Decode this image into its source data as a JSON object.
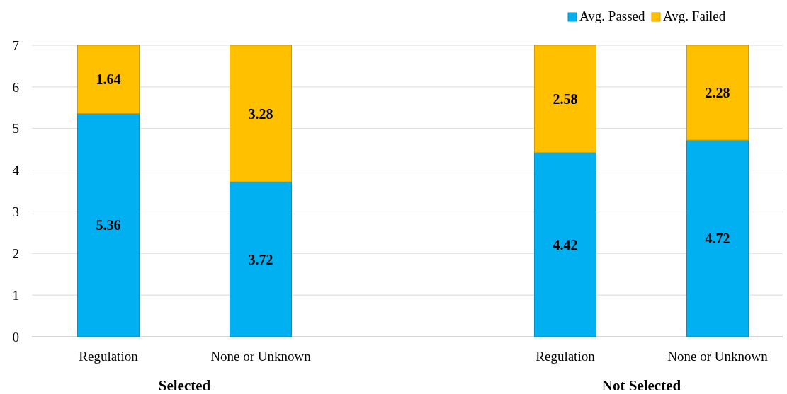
{
  "chart_data": {
    "type": "bar",
    "stacked": true,
    "categories": [
      "Regulation",
      "None or Unknown",
      null,
      "Regulation",
      "None or Unknown"
    ],
    "series": [
      {
        "name": "Avg. Passed",
        "color": "#00b0f0",
        "values": [
          5.36,
          3.72,
          null,
          4.42,
          4.72
        ]
      },
      {
        "name": "Avg. Failed",
        "color": "#ffc000",
        "values": [
          1.64,
          3.28,
          null,
          2.58,
          2.28
        ]
      }
    ],
    "ylim": [
      0,
      7
    ],
    "yticks": [
      0,
      1,
      2,
      3,
      4,
      5,
      6,
      7
    ],
    "grid": "y",
    "legend": "top right",
    "data_labels": true,
    "annotations": [
      "Selected",
      "Not Selected"
    ]
  }
}
